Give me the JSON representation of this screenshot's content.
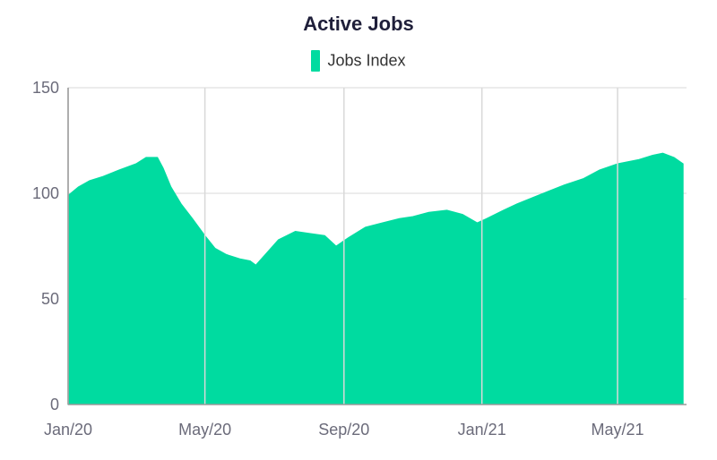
{
  "chart_data": {
    "type": "area",
    "title": "Active Jobs",
    "legend": {
      "position": "top",
      "entries": [
        "Jobs Index"
      ]
    },
    "series": [
      {
        "name": "Jobs Index",
        "color": "#00dba0",
        "points": [
          [
            "2020-01-01",
            99
          ],
          [
            "2020-01-10",
            103
          ],
          [
            "2020-01-20",
            106
          ],
          [
            "2020-02-01",
            108
          ],
          [
            "2020-02-15",
            111
          ],
          [
            "2020-03-01",
            114
          ],
          [
            "2020-03-10",
            117
          ],
          [
            "2020-03-20",
            117
          ],
          [
            "2020-03-25",
            112
          ],
          [
            "2020-04-01",
            103
          ],
          [
            "2020-04-10",
            95
          ],
          [
            "2020-04-20",
            88
          ],
          [
            "2020-05-01",
            80
          ],
          [
            "2020-05-10",
            74
          ],
          [
            "2020-05-20",
            71
          ],
          [
            "2020-06-01",
            69
          ],
          [
            "2020-06-10",
            68
          ],
          [
            "2020-06-15",
            66
          ],
          [
            "2020-06-25",
            72
          ],
          [
            "2020-07-05",
            78
          ],
          [
            "2020-07-20",
            82
          ],
          [
            "2020-08-01",
            81
          ],
          [
            "2020-08-15",
            80
          ],
          [
            "2020-08-25",
            75
          ],
          [
            "2020-09-05",
            79
          ],
          [
            "2020-09-20",
            84
          ],
          [
            "2020-10-05",
            86
          ],
          [
            "2020-10-20",
            88
          ],
          [
            "2020-11-01",
            89
          ],
          [
            "2020-11-15",
            91
          ],
          [
            "2020-12-01",
            92
          ],
          [
            "2020-12-15",
            90
          ],
          [
            "2020-12-28",
            86
          ],
          [
            "2021-01-05",
            88
          ],
          [
            "2021-01-20",
            92
          ],
          [
            "2021-02-01",
            95
          ],
          [
            "2021-02-15",
            98
          ],
          [
            "2021-03-01",
            101
          ],
          [
            "2021-03-15",
            104
          ],
          [
            "2021-04-01",
            107
          ],
          [
            "2021-04-15",
            111
          ],
          [
            "2021-05-01",
            114
          ],
          [
            "2021-05-20",
            116
          ],
          [
            "2021-06-01",
            118
          ],
          [
            "2021-06-10",
            119
          ],
          [
            "2021-06-20",
            117
          ],
          [
            "2021-06-28",
            114
          ]
        ]
      }
    ],
    "x_axis": {
      "type": "date",
      "range": [
        "2020-01-01",
        "2021-07-01"
      ],
      "ticks": [
        {
          "date": "2020-01-01",
          "label": "Jan/20"
        },
        {
          "date": "2020-05-01",
          "label": "May/20"
        },
        {
          "date": "2020-09-01",
          "label": "Sep/20"
        },
        {
          "date": "2021-01-01",
          "label": "Jan/21"
        },
        {
          "date": "2021-05-01",
          "label": "May/21"
        }
      ]
    },
    "y_axis": {
      "range": [
        0,
        150
      ],
      "ticks": [
        0,
        50,
        100,
        150
      ]
    },
    "grid": {
      "vertical": true,
      "horizontal": true
    }
  }
}
